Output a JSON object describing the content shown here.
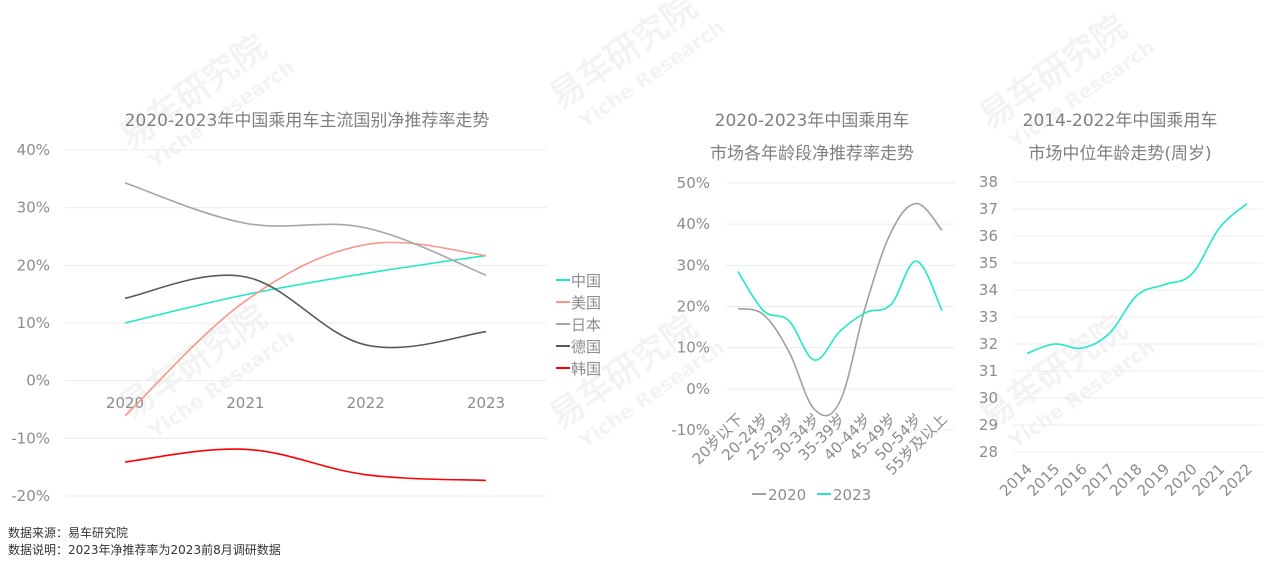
{
  "watermark": {
    "cn": "易车研究院",
    "en": "Yiche Research"
  },
  "footer": {
    "source": "数据来源：易车研究院",
    "note": "数据说明：2023年净推荐率为2023前8月调研数据"
  },
  "chart_data": [
    {
      "type": "line",
      "title": "2020-2023年中国乘用车主流国别净推荐率走势",
      "categories": [
        "2020",
        "2021",
        "2022",
        "2023"
      ],
      "ylim": [
        -20,
        40
      ],
      "yticks": [
        "40%",
        "30%",
        "20%",
        "10%",
        "0%",
        "-10%",
        "-20%"
      ],
      "ytick_values": [
        40,
        30,
        20,
        10,
        0,
        -10,
        -20
      ],
      "legend_position": "right",
      "grid": true,
      "series": [
        {
          "name": "中国",
          "color": "#1de9c9",
          "values": [
            10,
            14.9,
            18.6,
            21.7
          ]
        },
        {
          "name": "美国",
          "color": "#f8978a",
          "values": [
            -6.1,
            13.8,
            23.6,
            21.7
          ]
        },
        {
          "name": "日本",
          "color": "#a6a6a6",
          "values": [
            34.3,
            27.3,
            26.5,
            18.3
          ]
        },
        {
          "name": "德国",
          "color": "#595959",
          "values": [
            14.3,
            18.0,
            6.2,
            8.5
          ]
        },
        {
          "name": "韩国",
          "color": "#ff0000",
          "values": [
            -14.1,
            -11.9,
            -16.3,
            -17.3
          ]
        }
      ]
    },
    {
      "type": "line",
      "title": [
        "2020-2023年中国乘用车",
        "市场各年龄段净推荐率走势"
      ],
      "categories": [
        "20岁以下",
        "20-24岁",
        "25-29岁",
        "30-34岁",
        "35-39岁",
        "40-44岁",
        "45-49岁",
        "50-54岁",
        "55岁及以上"
      ],
      "ylim": [
        -10,
        50
      ],
      "yticks": [
        "50%",
        "40%",
        "30%",
        "20%",
        "10%",
        "0%",
        "-10%"
      ],
      "ytick_values": [
        50,
        40,
        30,
        20,
        10,
        0,
        -10
      ],
      "legend_position": "bottom",
      "grid": true,
      "series": [
        {
          "name": "2020",
          "color": "#a0a0a0",
          "values": [
            19.5,
            18,
            9,
            -5,
            -3,
            20,
            38,
            45,
            38.5
          ]
        },
        {
          "name": "2023",
          "color": "#1de9c9",
          "values": [
            28.5,
            19,
            16.5,
            7,
            14,
            18.5,
            20.5,
            31,
            19
          ]
        }
      ]
    },
    {
      "type": "line",
      "title": [
        "2014-2022年中国乘用车",
        "市场中位年龄走势(周岁)"
      ],
      "categories": [
        "2014",
        "2015",
        "2016",
        "2017",
        "2018",
        "2019",
        "2020",
        "2021",
        "2022"
      ],
      "ylim": [
        28,
        38
      ],
      "yticks": [
        "38",
        "37",
        "36",
        "35",
        "34",
        "33",
        "32",
        "31",
        "30",
        "29",
        "28"
      ],
      "ytick_values": [
        38,
        37,
        36,
        35,
        34,
        33,
        32,
        31,
        30,
        29,
        28
      ],
      "grid": true,
      "series": [
        {
          "name": "中位年龄",
          "color": "#1de9c9",
          "values": [
            31.65,
            32.0,
            31.85,
            32.4,
            33.8,
            34.2,
            34.6,
            36.3,
            37.2
          ]
        }
      ]
    }
  ]
}
